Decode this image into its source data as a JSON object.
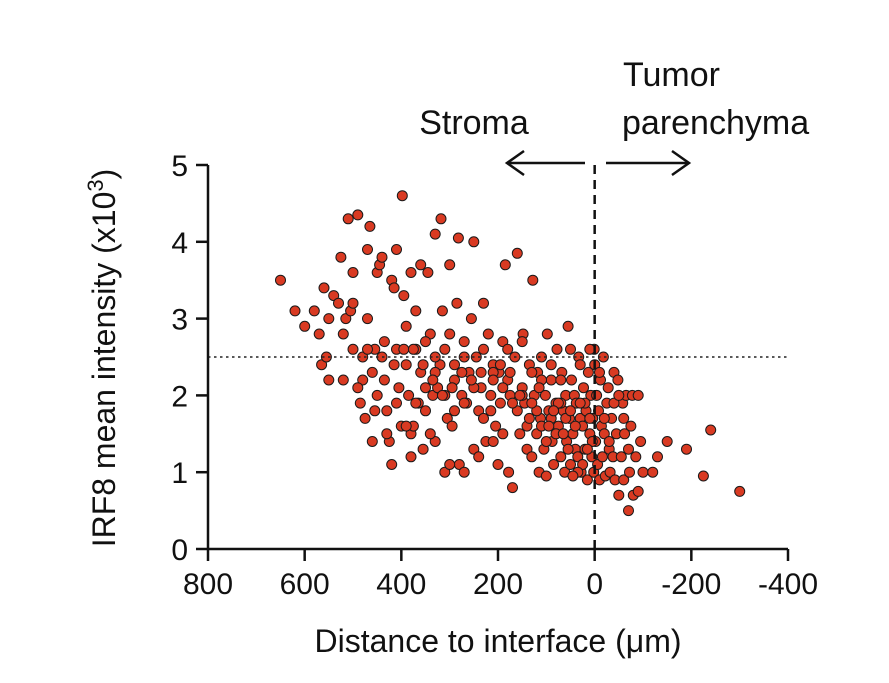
{
  "chart_data": {
    "type": "scatter",
    "xlabel": "Distance to interface (μm)",
    "ylabel": "IRF8 mean intensity (x10",
    "ylabel_superscript": "3",
    "ylabel_close": ")",
    "xlim": [
      800,
      -400
    ],
    "ylim": [
      0,
      5
    ],
    "x_ticks": [
      800,
      600,
      400,
      200,
      0,
      -200,
      -400
    ],
    "x_tick_labels": [
      "800",
      "600",
      "400",
      "200",
      "0",
      "-200",
      "-400"
    ],
    "y_ticks": [
      0,
      1,
      2,
      3,
      4,
      5
    ],
    "y_tick_labels": [
      "0",
      "1",
      "2",
      "3",
      "4",
      "5"
    ],
    "threshold_y": 2.5,
    "interface_x": 0,
    "regions": {
      "left_label": "Stroma",
      "right_label_line1": "Tumor",
      "right_label_line2": "parenchyma"
    },
    "marker_color": "#d93a22",
    "marker_edge_color": "#1a1a1a",
    "grid": false,
    "points": [
      [
        650,
        3.5
      ],
      [
        620,
        3.1
      ],
      [
        580,
        3.1
      ],
      [
        570,
        2.8
      ],
      [
        565,
        2.4
      ],
      [
        555,
        2.5
      ],
      [
        550,
        2.2
      ],
      [
        540,
        3.3
      ],
      [
        530,
        3.2
      ],
      [
        525,
        3.8
      ],
      [
        520,
        2.2
      ],
      [
        515,
        3.0
      ],
      [
        510,
        4.3
      ],
      [
        505,
        3.1
      ],
      [
        500,
        3.2
      ],
      [
        490,
        4.35
      ],
      [
        480,
        2.5
      ],
      [
        485,
        1.9
      ],
      [
        475,
        1.7
      ],
      [
        470,
        3.0
      ],
      [
        465,
        4.2
      ],
      [
        460,
        2.3
      ],
      [
        455,
        2.6
      ],
      [
        450,
        3.6
      ],
      [
        445,
        3.7
      ],
      [
        440,
        2.5
      ],
      [
        435,
        2.2
      ],
      [
        430,
        1.8
      ],
      [
        425,
        1.4
      ],
      [
        420,
        3.5
      ],
      [
        415,
        3.4
      ],
      [
        410,
        2.6
      ],
      [
        405,
        2.1
      ],
      [
        400,
        1.6
      ],
      [
        398,
        4.6
      ],
      [
        395,
        3.3
      ],
      [
        390,
        2.9
      ],
      [
        385,
        2.0
      ],
      [
        380,
        1.5
      ],
      [
        375,
        1.6
      ],
      [
        370,
        2.6
      ],
      [
        365,
        1.9
      ],
      [
        360,
        2.3
      ],
      [
        355,
        1.3
      ],
      [
        350,
        1.8
      ],
      [
        345,
        3.6
      ],
      [
        340,
        2.8
      ],
      [
        335,
        2.0
      ],
      [
        330,
        1.4
      ],
      [
        325,
        2.1
      ],
      [
        320,
        2.4
      ],
      [
        318,
        4.3
      ],
      [
        315,
        3.1
      ],
      [
        310,
        1.0
      ],
      [
        305,
        1.7
      ],
      [
        300,
        2.8
      ],
      [
        295,
        1.6
      ],
      [
        290,
        2.2
      ],
      [
        285,
        3.2
      ],
      [
        282,
        4.05
      ],
      [
        280,
        1.1
      ],
      [
        275,
        2.0
      ],
      [
        270,
        2.7
      ],
      [
        265,
        1.9
      ],
      [
        260,
        2.3
      ],
      [
        255,
        3.0
      ],
      [
        250,
        1.3
      ],
      [
        245,
        2.5
      ],
      [
        240,
        1.8
      ],
      [
        235,
        2.1
      ],
      [
        230,
        3.2
      ],
      [
        225,
        1.4
      ],
      [
        220,
        2.8
      ],
      [
        215,
        2.0
      ],
      [
        210,
        2.4
      ],
      [
        205,
        1.6
      ],
      [
        200,
        1.1
      ],
      [
        198,
        2.3
      ],
      [
        195,
        1.9
      ],
      [
        190,
        2.7
      ],
      [
        185,
        3.7
      ],
      [
        180,
        2.2
      ],
      [
        178,
        1.0
      ],
      [
        175,
        2.0
      ],
      [
        170,
        0.8
      ],
      [
        165,
        2.5
      ],
      [
        160,
        3.85
      ],
      [
        155,
        1.5
      ],
      [
        150,
        2.1
      ],
      [
        148,
        2.8
      ],
      [
        145,
        1.9
      ],
      [
        140,
        1.3
      ],
      [
        135,
        2.4
      ],
      [
        130,
        1.2
      ],
      [
        128,
        3.5
      ],
      [
        125,
        2.0
      ],
      [
        120,
        1.5
      ],
      [
        118,
        2.3
      ],
      [
        115,
        1.0
      ],
      [
        112,
        1.7
      ],
      [
        110,
        2.5
      ],
      [
        105,
        1.3
      ],
      [
        102,
        2.0
      ],
      [
        100,
        0.95
      ],
      [
        98,
        2.8
      ],
      [
        95,
        1.8
      ],
      [
        90,
        2.2
      ],
      [
        88,
        1.4
      ],
      [
        85,
        1.1
      ],
      [
        80,
        1.9
      ],
      [
        78,
        2.6
      ],
      [
        75,
        1.6
      ],
      [
        70,
        1.2
      ],
      [
        68,
        2.3
      ],
      [
        65,
        1.8
      ],
      [
        62,
        1.0
      ],
      [
        60,
        2.0
      ],
      [
        58,
        1.4
      ],
      [
        55,
        2.9
      ],
      [
        52,
        1.7
      ],
      [
        50,
        1.1
      ],
      [
        48,
        2.2
      ],
      [
        45,
        1.5
      ],
      [
        42,
        2.0
      ],
      [
        40,
        1.3
      ],
      [
        38,
        1.9
      ],
      [
        35,
        1.2
      ],
      [
        33,
        2.5
      ],
      [
        30,
        1.7
      ],
      [
        28,
        1.0
      ],
      [
        25,
        1.6
      ],
      [
        23,
        2.1
      ],
      [
        20,
        1.3
      ],
      [
        18,
        1.8
      ],
      [
        15,
        0.9
      ],
      [
        13,
        2.3
      ],
      [
        10,
        1.5
      ],
      [
        8,
        2.0
      ],
      [
        6,
        1.2
      ],
      [
        4,
        1.7
      ],
      [
        2,
        1.0
      ],
      [
        1,
        2.6
      ],
      [
        -2,
        1.4
      ],
      [
        -4,
        2.0
      ],
      [
        -6,
        1.1
      ],
      [
        -8,
        1.8
      ],
      [
        -10,
        0.9
      ],
      [
        -12,
        2.2
      ],
      [
        -14,
        1.6
      ],
      [
        -16,
        1.2
      ],
      [
        -18,
        2.5
      ],
      [
        -20,
        1.5
      ],
      [
        -22,
        0.95
      ],
      [
        -25,
        1.9
      ],
      [
        -28,
        2.1
      ],
      [
        -30,
        1.3
      ],
      [
        -32,
        1.0
      ],
      [
        -35,
        1.7
      ],
      [
        -38,
        1.2
      ],
      [
        -40,
        2.3
      ],
      [
        -42,
        0.9
      ],
      [
        -45,
        1.5
      ],
      [
        -48,
        2.2
      ],
      [
        -50,
        0.7
      ],
      [
        -55,
        1.2
      ],
      [
        -58,
        1.9
      ],
      [
        -60,
        0.9
      ],
      [
        -62,
        1.5
      ],
      [
        -65,
        2.0
      ],
      [
        -70,
        0.5
      ],
      [
        -72,
        1.0
      ],
      [
        -75,
        1.6
      ],
      [
        -78,
        2.0
      ],
      [
        -80,
        0.7
      ],
      [
        -85,
        1.2
      ],
      [
        -90,
        0.75
      ],
      [
        -95,
        1.4
      ],
      [
        -100,
        1.0
      ],
      [
        -120,
        1.0
      ],
      [
        -130,
        1.2
      ],
      [
        -150,
        1.4
      ],
      [
        -190,
        1.3
      ],
      [
        -225,
        0.95
      ],
      [
        -240,
        1.55
      ],
      [
        -300,
        0.75
      ],
      [
        330,
        4.1
      ],
      [
        360,
        3.7
      ],
      [
        440,
        3.8
      ],
      [
        470,
        3.9
      ],
      [
        500,
        3.6
      ],
      [
        300,
        3.7
      ],
      [
        250,
        4.0
      ],
      [
        380,
        3.6
      ],
      [
        410,
        3.9
      ],
      [
        550,
        3.0
      ],
      [
        560,
        3.4
      ],
      [
        600,
        2.9
      ],
      [
        520,
        2.8
      ],
      [
        480,
        2.2
      ],
      [
        460,
        1.4
      ],
      [
        420,
        1.1
      ],
      [
        380,
        1.2
      ],
      [
        340,
        1.5
      ],
      [
        300,
        1.1
      ],
      [
        270,
        1.0
      ],
      [
        240,
        1.2
      ],
      [
        210,
        1.4
      ],
      [
        190,
        1.5
      ],
      [
        160,
        1.8
      ],
      [
        140,
        1.6
      ],
      [
        120,
        1.8
      ],
      [
        100,
        1.4
      ],
      [
        80,
        1.5
      ],
      [
        60,
        1.7
      ],
      [
        40,
        1.6
      ],
      [
        20,
        1.9
      ],
      [
        0,
        2.4
      ],
      [
        -10,
        2.3
      ],
      [
        -20,
        1.7
      ],
      [
        -30,
        1.4
      ],
      [
        -40,
        1.9
      ],
      [
        -50,
        2.0
      ],
      [
        -60,
        1.7
      ],
      [
        -70,
        1.3
      ],
      [
        -90,
        2.0
      ],
      [
        390,
        2.4
      ],
      [
        370,
        3.1
      ],
      [
        350,
        2.7
      ],
      [
        330,
        2.5
      ],
      [
        310,
        2.6
      ],
      [
        290,
        2.4
      ],
      [
        270,
        2.5
      ],
      [
        230,
        2.6
      ],
      [
        210,
        2.3
      ],
      [
        180,
        2.6
      ],
      [
        150,
        2.7
      ],
      [
        130,
        2.3
      ],
      [
        110,
        2.2
      ],
      [
        90,
        2.4
      ],
      [
        70,
        2.2
      ],
      [
        50,
        2.6
      ],
      [
        30,
        2.4
      ],
      [
        10,
        2.6
      ],
      [
        450,
        2.0
      ],
      [
        430,
        1.5
      ],
      [
        410,
        1.9
      ],
      [
        390,
        1.6
      ],
      [
        370,
        1.9
      ],
      [
        350,
        2.1
      ],
      [
        330,
        2.3
      ],
      [
        310,
        2.0
      ],
      [
        290,
        1.8
      ],
      [
        270,
        1.9
      ],
      [
        250,
        2.1
      ],
      [
        230,
        1.7
      ],
      [
        210,
        2.2
      ],
      [
        190,
        2.1
      ],
      [
        170,
        1.9
      ],
      [
        150,
        2.0
      ],
      [
        130,
        1.9
      ],
      [
        110,
        1.6
      ],
      [
        90,
        1.7
      ],
      [
        70,
        1.9
      ],
      [
        50,
        1.8
      ],
      [
        30,
        1.9
      ],
      [
        10,
        1.7
      ],
      [
        5,
        1.4
      ],
      [
        15,
        1.3
      ],
      [
        25,
        1.1
      ],
      [
        35,
        1.0
      ],
      [
        45,
        0.95
      ],
      [
        55,
        1.3
      ],
      [
        65,
        1.5
      ],
      [
        75,
        1.9
      ],
      [
        85,
        1.8
      ],
      [
        95,
        1.6
      ],
      [
        500,
        2.6
      ],
      [
        490,
        2.1
      ],
      [
        470,
        2.6
      ],
      [
        455,
        1.8
      ],
      [
        435,
        2.7
      ],
      [
        415,
        2.4
      ],
      [
        395,
        2.6
      ],
      [
        375,
        2.6
      ],
      [
        355,
        2.4
      ],
      [
        335,
        2.2
      ],
      [
        315,
        2.0
      ],
      [
        295,
        2.1
      ],
      [
        275,
        2.3
      ],
      [
        255,
        2.2
      ],
      [
        235,
        2.3
      ],
      [
        215,
        1.8
      ],
      [
        195,
        2.4
      ],
      [
        175,
        2.3
      ],
      [
        155,
        2.0
      ],
      [
        135,
        1.7
      ],
      [
        115,
        2.1
      ]
    ]
  }
}
